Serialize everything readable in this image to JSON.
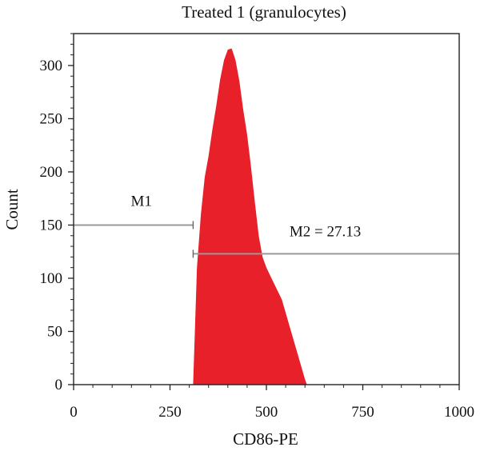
{
  "chart_data": {
    "type": "area",
    "title": "Treated 1 (granulocytes)",
    "xlabel": "CD86-PE",
    "ylabel": "Count",
    "xlim": [
      0,
      1000
    ],
    "ylim": [
      0,
      330
    ],
    "x_ticks": [
      0,
      250,
      500,
      750,
      1000
    ],
    "y_ticks": [
      0,
      50,
      100,
      150,
      200,
      250,
      300
    ],
    "x_tick_labels": [
      "0",
      "250",
      "500",
      "750",
      "1000"
    ],
    "y_tick_labels": [
      "0",
      "50",
      "100",
      "150",
      "200",
      "250",
      "300"
    ],
    "grid": false,
    "fill_color": "#e8202a",
    "marker_color": "#999999",
    "series": [
      {
        "x": [
          310,
          320,
          330,
          340,
          350,
          360,
          370,
          380,
          390,
          400,
          410,
          420,
          430,
          440,
          450,
          460,
          470,
          480,
          490,
          500,
          520,
          540,
          560,
          580,
          600,
          605
        ],
        "values": [
          0,
          110,
          160,
          195,
          215,
          240,
          262,
          287,
          305,
          315,
          316,
          305,
          285,
          258,
          235,
          205,
          172,
          140,
          120,
          110,
          95,
          80,
          55,
          30,
          5,
          0
        ]
      }
    ],
    "markers": [
      {
        "label": "M1",
        "x_start": 0,
        "x_end": 310,
        "y": 150
      },
      {
        "label": "M2 = 27.13",
        "x_start": 310,
        "x_end": 1000,
        "y": 123
      }
    ]
  }
}
